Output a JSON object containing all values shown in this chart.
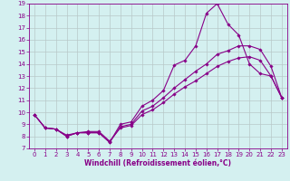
{
  "xlabel": "Windchill (Refroidissement éolien,°C)",
  "bg_color": "#d4f0f0",
  "grid_color": "#b8c8c8",
  "line_color": "#880088",
  "xlim": [
    -0.5,
    23.5
  ],
  "ylim": [
    7,
    19
  ],
  "xticks": [
    0,
    1,
    2,
    3,
    4,
    5,
    6,
    7,
    8,
    9,
    10,
    11,
    12,
    13,
    14,
    15,
    16,
    17,
    18,
    19,
    20,
    21,
    22,
    23
  ],
  "yticks": [
    7,
    8,
    9,
    10,
    11,
    12,
    13,
    14,
    15,
    16,
    17,
    18,
    19
  ],
  "line1_x": [
    0,
    1,
    2,
    3,
    4,
    5,
    6,
    7,
    8,
    9,
    10,
    11,
    12,
    13,
    14,
    15,
    16,
    17,
    18,
    19,
    20,
    21,
    22,
    23
  ],
  "line1_y": [
    9.8,
    8.7,
    8.6,
    8.0,
    8.3,
    8.3,
    8.3,
    7.5,
    9.0,
    9.2,
    10.5,
    11.0,
    11.8,
    13.9,
    14.3,
    15.5,
    18.2,
    19.0,
    17.3,
    16.4,
    14.0,
    13.2,
    13.0,
    11.2
  ],
  "line2_x": [
    0,
    1,
    2,
    3,
    4,
    5,
    6,
    7,
    8,
    9,
    10,
    11,
    12,
    13,
    14,
    15,
    16,
    17,
    18,
    19,
    20,
    21,
    22,
    23
  ],
  "line2_y": [
    9.8,
    8.7,
    8.6,
    8.0,
    8.3,
    8.3,
    8.3,
    7.5,
    8.8,
    9.0,
    10.1,
    10.5,
    11.2,
    12.0,
    12.7,
    13.4,
    14.0,
    14.8,
    15.1,
    15.5,
    15.5,
    15.2,
    13.8,
    11.2
  ],
  "line3_x": [
    0,
    1,
    2,
    3,
    4,
    5,
    6,
    7,
    8,
    9,
    10,
    11,
    12,
    13,
    14,
    15,
    16,
    17,
    18,
    19,
    20,
    21,
    22,
    23
  ],
  "line3_y": [
    9.8,
    8.7,
    8.6,
    8.1,
    8.3,
    8.4,
    8.4,
    7.6,
    8.7,
    8.9,
    9.8,
    10.2,
    10.8,
    11.5,
    12.1,
    12.6,
    13.2,
    13.8,
    14.2,
    14.5,
    14.6,
    14.3,
    13.0,
    11.2
  ],
  "tick_fontsize": 5.0,
  "xlabel_fontsize": 5.5,
  "marker_size": 1.8,
  "line_width": 0.8
}
